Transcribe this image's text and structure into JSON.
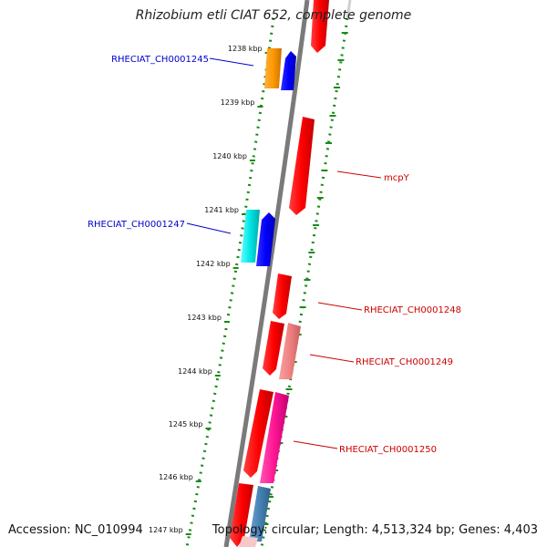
{
  "title": "Rhizobium etli CIAT 652, complete genome",
  "footer": {
    "accession": "Accession: NC_010994",
    "summary": "Topology: circular; Length: 4,513,324 bp; Genes: 4,403"
  },
  "scale_ticks": [
    "1238 kbp",
    "1239 kbp",
    "1240 kbp",
    "1241 kbp",
    "1242 kbp",
    "1243 kbp",
    "1244 kbp",
    "1245 kbp",
    "1246 kbp",
    "1247 kbp"
  ],
  "gene_labels": [
    {
      "text": "RHECIAT_CH0001245",
      "color": "#0000cc"
    },
    {
      "text": "RHECIAT_CH0001247",
      "color": "#0000cc"
    },
    {
      "text": "mcpY",
      "color": "#cc0000"
    },
    {
      "text": "RHECIAT_CH0001248",
      "color": "#cc0000"
    },
    {
      "text": "RHECIAT_CH0001249",
      "color": "#cc0000"
    },
    {
      "text": "RHECIAT_CH0001250",
      "color": "#cc0000"
    }
  ],
  "colors": {
    "backbone": "#808080",
    "gc_ticks": "#1a8a1a",
    "red": "#ff0000",
    "blue": "#0000ff",
    "orange": "#ff9900",
    "cyan": "#00e5e5",
    "pink": "#f08080",
    "magenta": "#ff1493",
    "steel": "#4682b4"
  }
}
